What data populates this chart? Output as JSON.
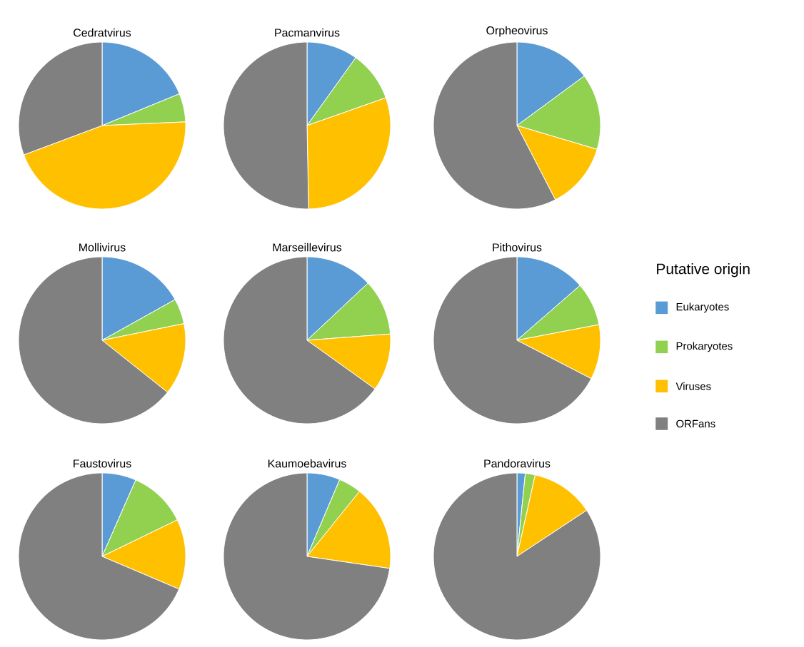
{
  "chart_data": [
    {
      "type": "pie",
      "title": "Cedratvirus",
      "categories": [
        null,
        null,
        null,
        null
      ],
      "values": [
        18.8,
        5.5,
        45.0,
        30.7
      ],
      "colors": [
        "#5b9bd5",
        "#92d050",
        "#ffc000",
        "#808080"
      ],
      "legend": false
    },
    {
      "type": "pie",
      "title": "Pacmanvirus",
      "categories": [
        null,
        null,
        null,
        null
      ],
      "values": [
        9.9,
        9.7,
        30.1,
        50.3
      ],
      "colors": [
        "#5b9bd5",
        "#92d050",
        "#ffc000",
        "#808080"
      ],
      "legend": false
    },
    {
      "type": "pie",
      "title": "Orpheovirus",
      "categories": [
        null,
        null,
        null,
        null
      ],
      "values": [
        14.9,
        14.7,
        12.8,
        57.6
      ],
      "colors": [
        "#5b9bd5",
        "#92d050",
        "#ffc000",
        "#808080"
      ],
      "legend": false
    },
    {
      "type": "pie",
      "title": "Mollivirus",
      "categories": [
        null,
        null,
        null,
        null
      ],
      "values": [
        16.9,
        4.9,
        13.9,
        64.3
      ],
      "colors": [
        "#5b9bd5",
        "#92d050",
        "#ffc000",
        "#808080"
      ],
      "legend": false
    },
    {
      "type": "pie",
      "title": "Marseillevirus",
      "categories": [
        null,
        null,
        null,
        null
      ],
      "values": [
        13.0,
        10.8,
        11.1,
        65.1
      ],
      "colors": [
        "#5b9bd5",
        "#92d050",
        "#ffc000",
        "#808080"
      ],
      "legend": false
    },
    {
      "type": "pie",
      "title": "Pithovirus",
      "legend_title": "Putative origin",
      "categories": [
        "Eukaryotes",
        "Prokaryotes",
        "Viruses",
        "ORFans"
      ],
      "values": [
        13.6,
        8.4,
        10.6,
        67.4
      ],
      "colors": [
        "#5b9bd5",
        "#92d050",
        "#ffc000",
        "#808080"
      ],
      "legend": "right"
    },
    {
      "type": "pie",
      "title": "Faustovirus",
      "categories": [
        null,
        null,
        null,
        null
      ],
      "values": [
        6.6,
        11.2,
        13.6,
        68.6
      ],
      "colors": [
        "#5b9bd5",
        "#92d050",
        "#ffc000",
        "#808080"
      ],
      "legend": false
    },
    {
      "type": "pie",
      "title": "Kaumoebavirus",
      "categories": [
        null,
        null,
        null,
        null
      ],
      "values": [
        6.4,
        4.4,
        16.5,
        72.7
      ],
      "colors": [
        "#5b9bd5",
        "#92d050",
        "#ffc000",
        "#808080"
      ],
      "legend": false
    },
    {
      "type": "pie",
      "title": "Pandoravirus",
      "categories": [
        null,
        null,
        null,
        null
      ],
      "values": [
        1.6,
        1.9,
        12.2,
        84.3
      ],
      "colors": [
        "#5b9bd5",
        "#92d050",
        "#ffc000",
        "#808080"
      ],
      "legend": false
    }
  ]
}
